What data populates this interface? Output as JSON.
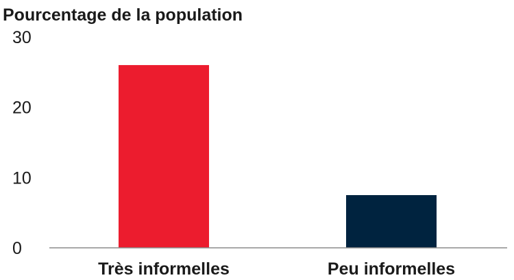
{
  "chart_data": {
    "type": "bar",
    "title": "",
    "xlabel": "",
    "ylabel": "Pourcentage de la population",
    "categories": [
      "Très informelles",
      "Peu informelles"
    ],
    "values": [
      26,
      7.5
    ],
    "colors": [
      "#ec1c2e",
      "#00233f"
    ],
    "ylim": [
      0,
      30
    ],
    "yticks": [
      "0",
      "10",
      "20",
      "30"
    ],
    "grid": false
  }
}
